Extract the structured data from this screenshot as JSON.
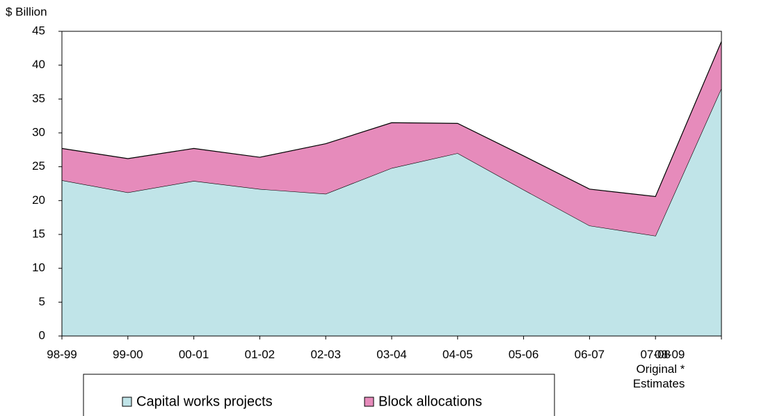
{
  "chart_data": {
    "type": "stacked_area",
    "y_label": "$ Billion",
    "categories": [
      "98-99",
      "99-00",
      "00-01",
      "01-02",
      "02-03",
      "03-04",
      "04-05",
      "05-06",
      "06-07",
      "07-08",
      "08-09\nOriginal *\nEstimates"
    ],
    "series": [
      {
        "name": "Capital works projects",
        "color": "#c0e4e8",
        "values": [
          23.0,
          21.2,
          22.9,
          21.7,
          21.0,
          24.8,
          27.0,
          21.6,
          16.3,
          14.8,
          36.6
        ]
      },
      {
        "name": "Block allocations",
        "color": "#e68bbb",
        "values": [
          4.7,
          5.0,
          4.8,
          4.7,
          7.4,
          6.7,
          4.4,
          5.0,
          5.4,
          5.8,
          6.9
        ]
      }
    ],
    "ylim": [
      0,
      45
    ],
    "yticks": [
      0,
      5,
      10,
      15,
      20,
      25,
      30,
      35,
      40,
      45
    ],
    "legend": "bottom"
  }
}
